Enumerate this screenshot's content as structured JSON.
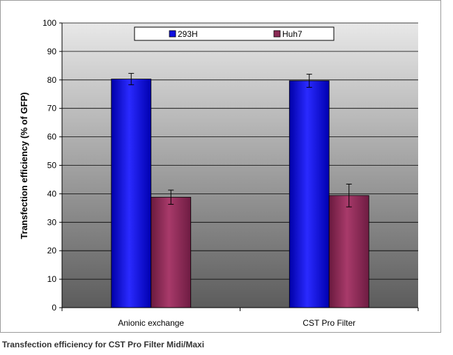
{
  "chart_data": {
    "type": "bar",
    "title": "",
    "xlabel": "",
    "ylabel": "Transfection efficiency (% of GFP)",
    "ylim": [
      0,
      100
    ],
    "yticks": [
      0,
      10,
      20,
      30,
      40,
      50,
      60,
      70,
      80,
      90,
      100
    ],
    "categories": [
      "Anionic exchange",
      "CST Pro Filter"
    ],
    "series": [
      {
        "name": "293H",
        "values": [
          80.3,
          79.7
        ],
        "errors": [
          2.0,
          2.3
        ],
        "color": "#1010e0"
      },
      {
        "name": "Huh7",
        "values": [
          38.8,
          39.4
        ],
        "errors": [
          2.5,
          4.0
        ],
        "color": "#8b2a55"
      }
    ],
    "grid": true,
    "legend": "top"
  },
  "caption": "Transfection efficiency for CST Pro Filter Midi/Maxi"
}
